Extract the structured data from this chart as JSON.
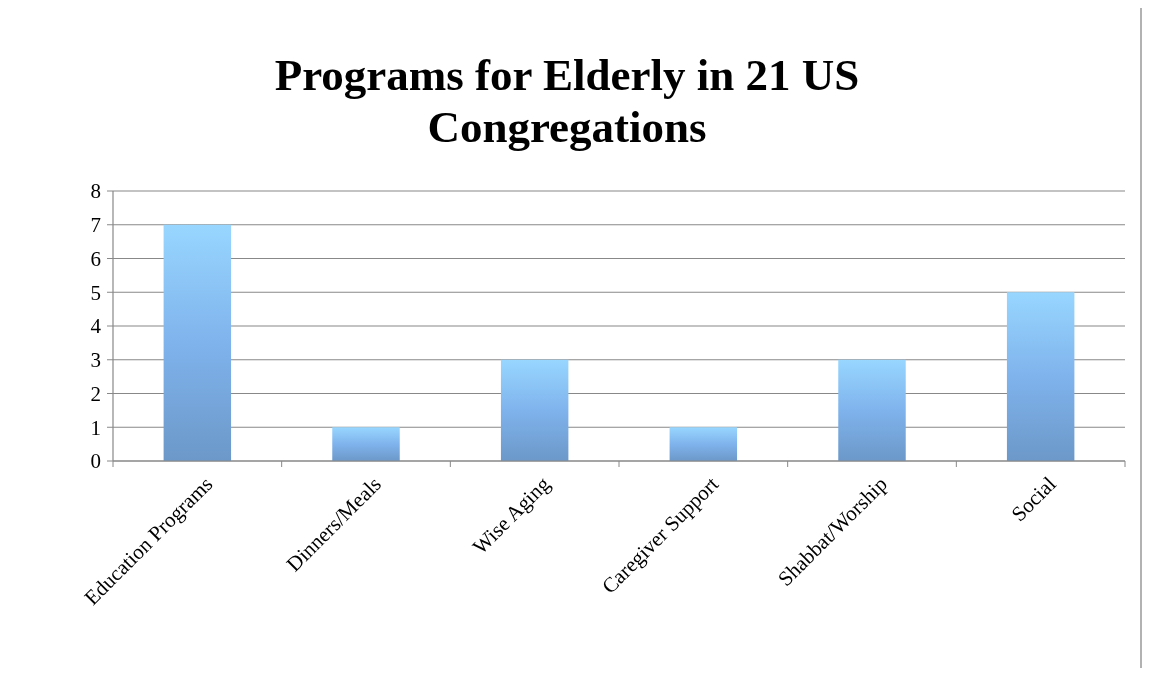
{
  "chart_data": {
    "type": "bar",
    "title": "Programs for Elderly in 21 US Congregations",
    "categories": [
      "Education Programs",
      "Dinners/Meals",
      "Wise Aging",
      "Caregiver Support",
      "Shabbat/Worship",
      "Social"
    ],
    "values": [
      7,
      1,
      3,
      1,
      3,
      5
    ],
    "color": "#7fb3ec",
    "ylim": [
      0,
      8
    ],
    "yticks": [
      0,
      1,
      2,
      3,
      4,
      5,
      6,
      7,
      8
    ],
    "grid": "y"
  }
}
